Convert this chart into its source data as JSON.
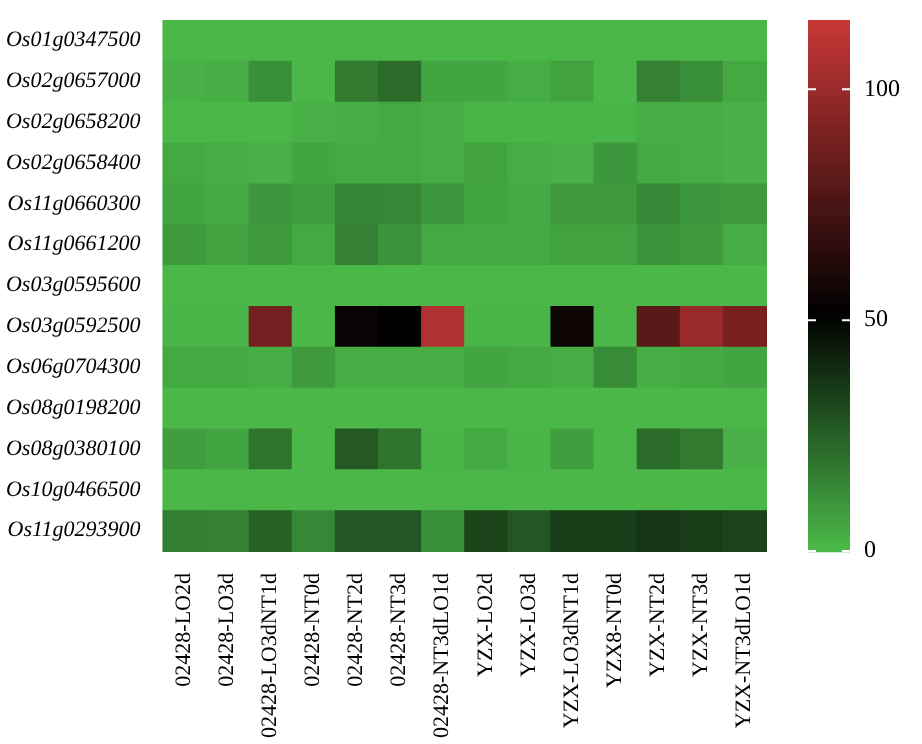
{
  "chart_data": {
    "type": "heatmap",
    "categories": [
      "02428-LO2d",
      "02428-LO3d",
      "02428-LO3dNT1d",
      "02428-NT0d",
      "02428-NT2d",
      "02428-NT3d",
      "02428-NT3dLO1d",
      "YZX-LO2d",
      "YZX-LO3d",
      "YZX-LO3dNT1d",
      "YZX8-NT0d",
      "YZX-NT2d",
      "YZX-NT3d",
      "YZX-NT3dLO1d"
    ],
    "y_categories": [
      "Os01g0347500",
      "Os02g0657000",
      "Os02g0658200",
      "Os02g0658400",
      "Os11g0660300",
      "Os11g0661200",
      "Os03g0595600",
      "Os03g0592500",
      "Os06g0704300",
      "Os08g0198200",
      "Os08g0380100",
      "Os10g0466500",
      "Os11g0293900"
    ],
    "cells": [
      [
        1,
        1,
        1,
        1,
        1,
        1,
        1,
        1,
        1,
        1,
        1,
        1,
        1,
        1
      ],
      [
        3,
        4,
        12,
        1,
        18,
        22,
        6,
        6,
        4,
        7,
        1,
        16,
        12,
        5
      ],
      [
        1,
        1,
        1,
        3,
        4,
        5,
        4,
        2,
        2,
        2,
        2,
        4,
        4,
        3
      ],
      [
        5,
        4,
        3,
        6,
        5,
        5,
        4,
        7,
        4,
        3,
        10,
        5,
        4,
        3
      ],
      [
        6,
        5,
        10,
        8,
        15,
        14,
        10,
        6,
        5,
        9,
        9,
        14,
        10,
        9
      ],
      [
        9,
        7,
        9,
        5,
        16,
        11,
        5,
        5,
        5,
        7,
        7,
        11,
        9,
        4
      ],
      [
        1,
        1,
        1,
        1,
        1,
        1,
        1,
        1,
        1,
        1,
        1,
        1,
        1,
        1
      ],
      [
        2,
        2,
        88,
        1,
        55,
        52,
        108,
        2,
        2,
        56,
        1,
        80,
        100,
        90
      ],
      [
        5,
        5,
        4,
        9,
        4,
        4,
        4,
        6,
        5,
        4,
        13,
        4,
        5,
        6
      ],
      [
        1,
        1,
        1,
        1,
        1,
        1,
        1,
        1,
        1,
        1,
        1,
        1,
        1,
        1
      ],
      [
        8,
        6,
        20,
        1,
        27,
        20,
        2,
        5,
        2,
        8,
        1,
        22,
        18,
        3
      ],
      [
        1,
        1,
        1,
        1,
        1,
        1,
        1,
        1,
        1,
        1,
        1,
        1,
        1,
        1
      ],
      [
        17,
        16,
        25,
        14,
        28,
        28,
        12,
        33,
        28,
        35,
        35,
        37,
        35,
        33
      ]
    ],
    "clim": [
      0,
      115
    ],
    "cticks": [
      0,
      50,
      100
    ]
  }
}
